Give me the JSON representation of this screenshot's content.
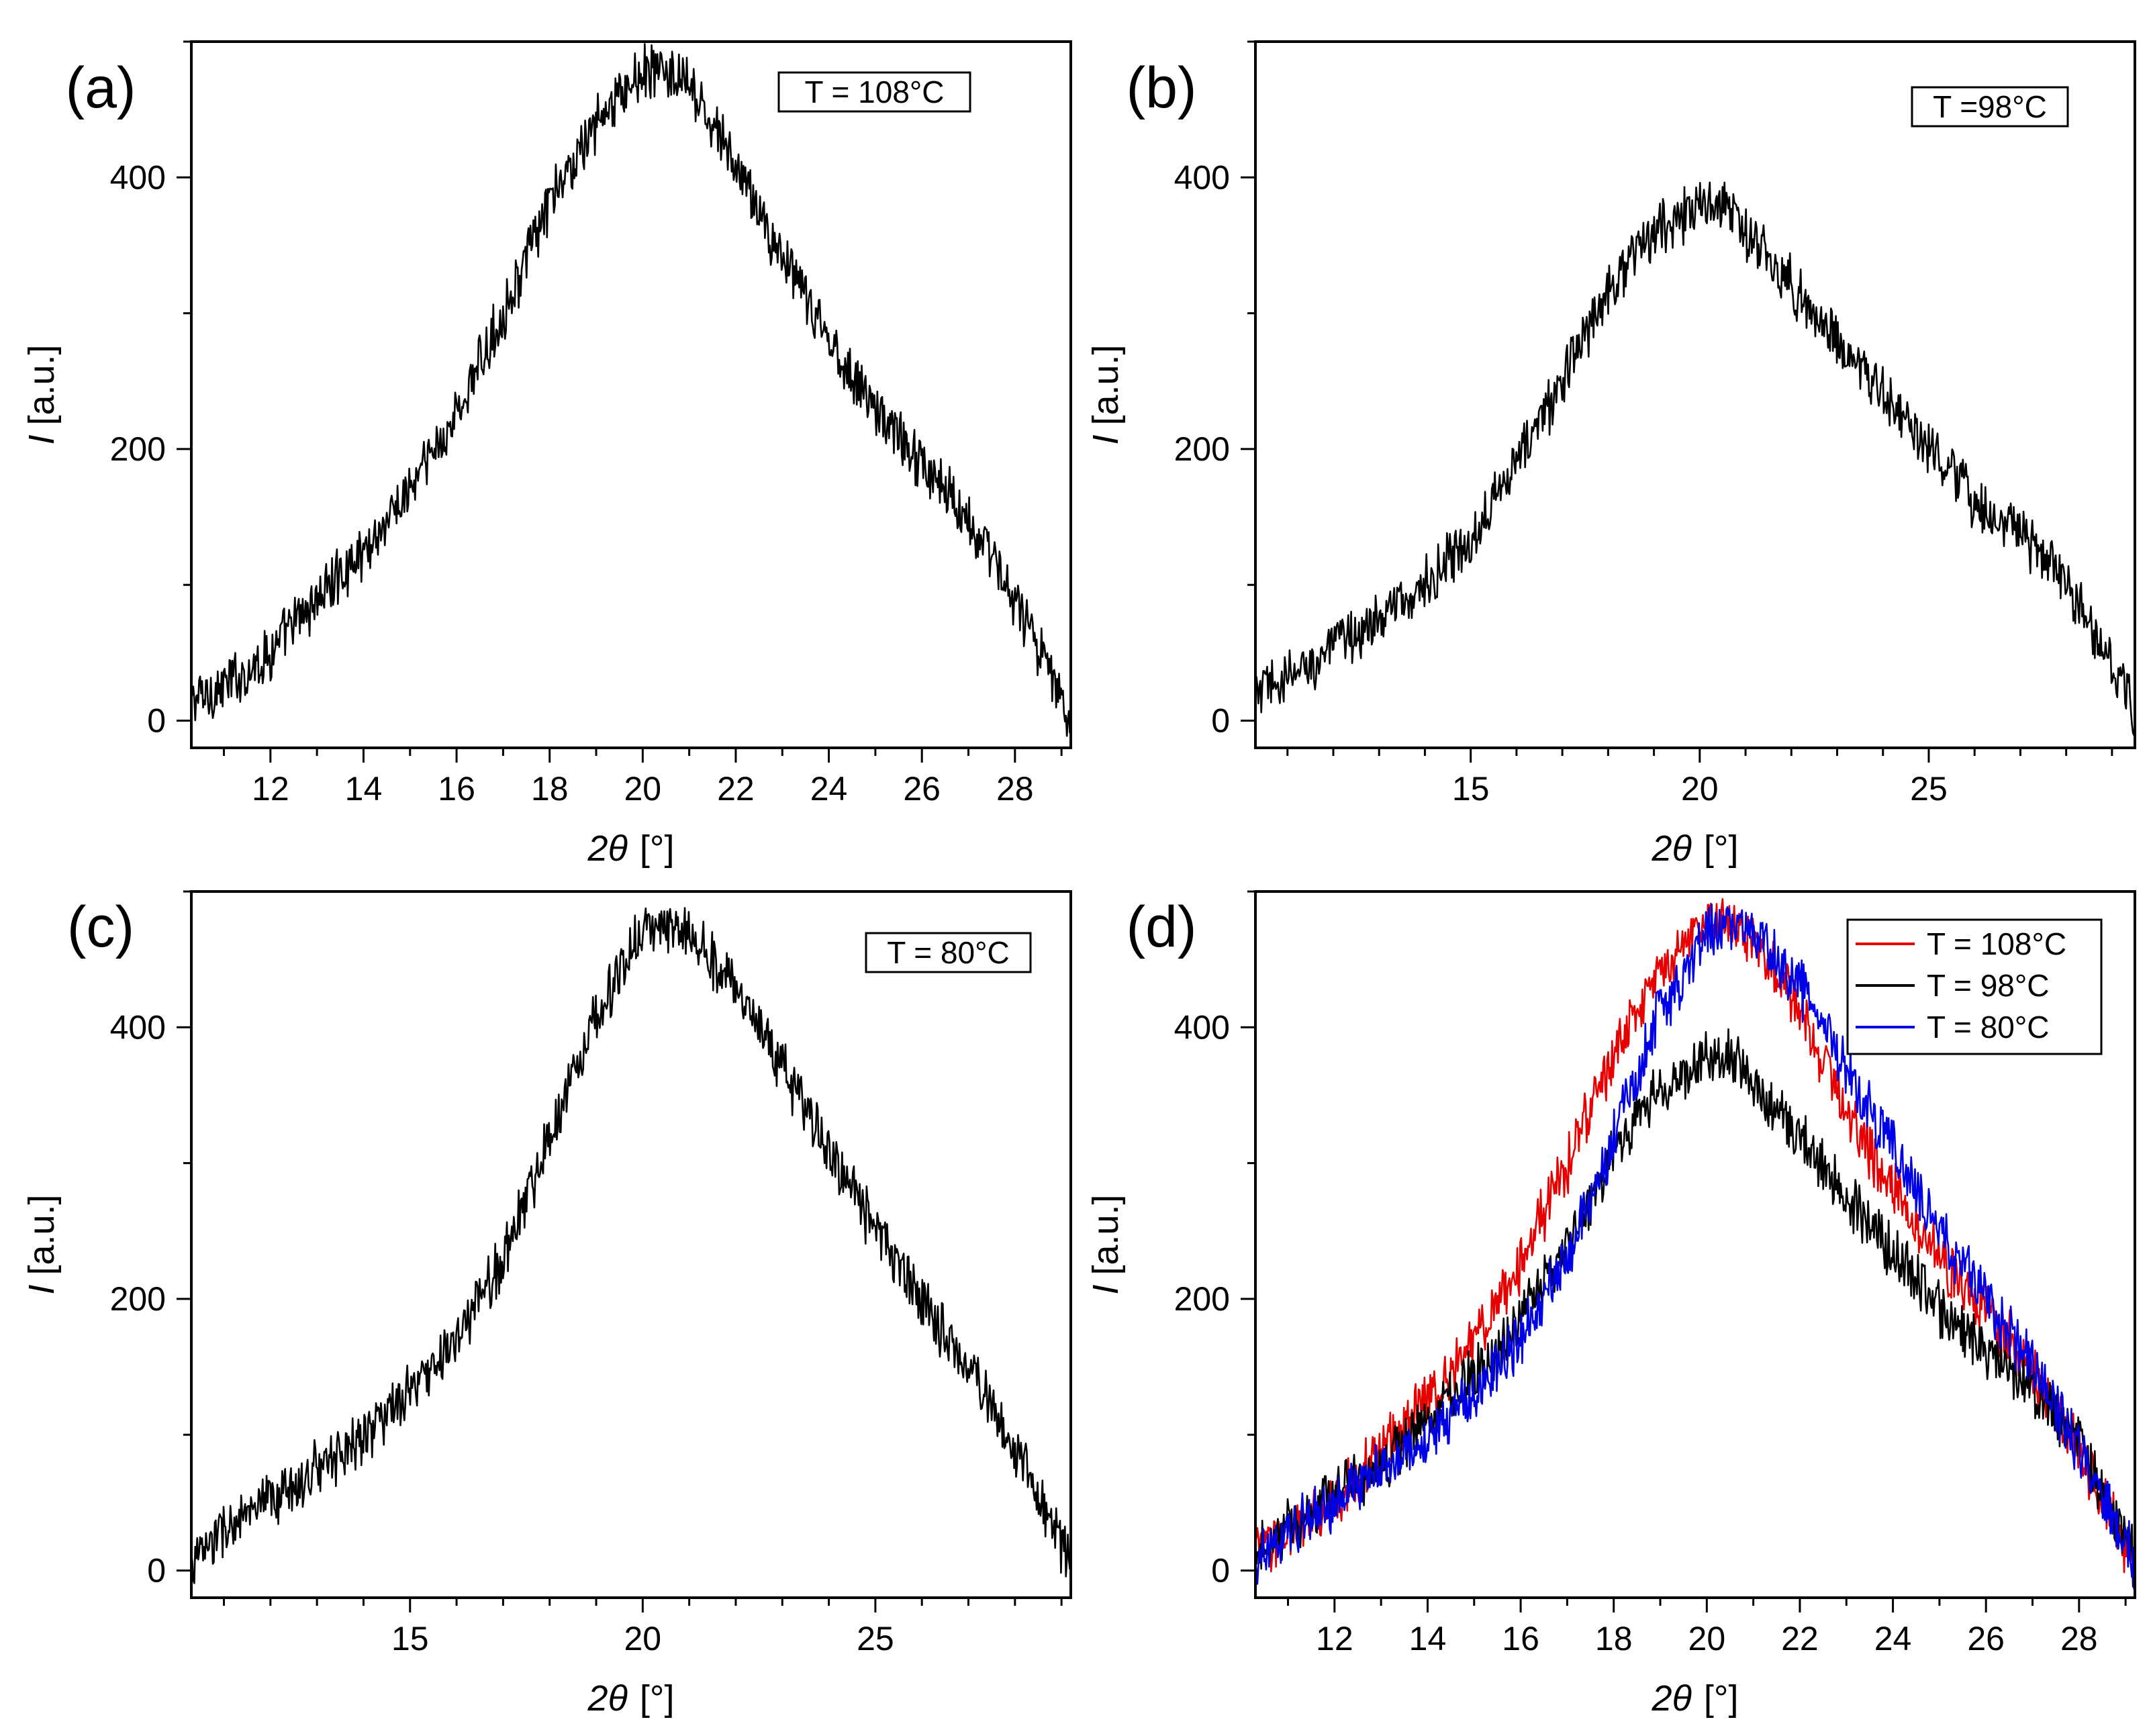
{
  "figure": {
    "xlabel_symbol": "2θ",
    "xlabel_unit": "[°]",
    "ylabel_symbol": "I",
    "ylabel_unit": "[a.u.]"
  },
  "colors": {
    "t108": "#e60000",
    "t98": "#000000",
    "t80": "#0000e6"
  },
  "chart_data": [
    {
      "panel": "(a)",
      "type": "line",
      "title": "",
      "xlabel": "2θ [°]",
      "ylabel": "I [a.u.]",
      "xlim": [
        10.3,
        29.2
      ],
      "ylim": [
        -20,
        500
      ],
      "xticks": [
        12,
        14,
        16,
        18,
        20,
        22,
        24,
        26,
        28
      ],
      "yticks": [
        0,
        200,
        400
      ],
      "legend_entries": [
        "T = 108°C"
      ],
      "series": [
        {
          "name": "T = 108°C",
          "color": "#000000",
          "x": [
            10.3,
            11,
            12,
            13,
            14,
            15,
            16,
            17,
            18,
            19,
            20,
            20.5,
            21,
            22,
            23,
            24,
            25,
            26,
            27,
            28,
            29,
            29.2
          ],
          "y": [
            15,
            25,
            50,
            90,
            125,
            170,
            225,
            300,
            380,
            440,
            478,
            478,
            465,
            410,
            340,
            280,
            230,
            190,
            150,
            90,
            15,
            5
          ]
        }
      ]
    },
    {
      "panel": "(b)",
      "type": "line",
      "title": "",
      "xlabel": "2θ [°]",
      "ylabel": "I [a.u.]",
      "xlim": [
        10.3,
        29.5
      ],
      "ylim": [
        -20,
        500
      ],
      "xticks": [
        15,
        20,
        25
      ],
      "yticks": [
        0,
        200,
        400
      ],
      "legend_entries": [
        "T =98°C"
      ],
      "series": [
        {
          "name": "T =98°C",
          "color": "#000000",
          "x": [
            10.3,
            11,
            12,
            13,
            14,
            15,
            15.5,
            16,
            17,
            18,
            19,
            20,
            20.5,
            21,
            22,
            23,
            24,
            25,
            26,
            27,
            28,
            29,
            29.5
          ],
          "y": [
            20,
            30,
            55,
            75,
            100,
            130,
            170,
            190,
            250,
            320,
            360,
            380,
            380,
            360,
            320,
            280,
            240,
            200,
            160,
            140,
            100,
            40,
            5
          ]
        }
      ]
    },
    {
      "panel": "(c)",
      "type": "line",
      "title": "",
      "xlabel": "2θ [°]",
      "ylabel": "I [a.u.]",
      "xlim": [
        10.3,
        29.2
      ],
      "ylim": [
        -20,
        500
      ],
      "xticks": [
        15,
        20,
        25
      ],
      "yticks": [
        0,
        200,
        400
      ],
      "legend_entries": [
        "T = 80°C"
      ],
      "series": [
        {
          "name": "T = 80°C",
          "color": "#000000",
          "x": [
            10.3,
            11,
            12,
            13,
            14,
            15,
            16,
            17,
            18,
            19,
            20,
            20.5,
            21,
            22,
            23,
            24,
            25,
            26,
            27,
            28,
            29,
            29.2
          ],
          "y": [
            5,
            30,
            50,
            75,
            100,
            130,
            170,
            230,
            320,
            410,
            470,
            475,
            470,
            430,
            370,
            310,
            250,
            200,
            150,
            90,
            20,
            5
          ]
        }
      ]
    },
    {
      "panel": "(d)",
      "type": "line",
      "title": "",
      "xlabel": "2θ [°]",
      "ylabel": "I [a.u.]",
      "xlim": [
        10.3,
        29.2
      ],
      "ylim": [
        -20,
        500
      ],
      "xticks": [
        12,
        14,
        16,
        18,
        20,
        22,
        24,
        26,
        28
      ],
      "yticks": [
        0,
        200,
        400
      ],
      "legend_entries": [
        "T = 108°C",
        "T = 98°C",
        "T = 80°C"
      ],
      "series": [
        {
          "name": "T = 108°C",
          "color": "#e60000",
          "x": [
            10.3,
            11,
            12,
            13,
            14,
            15,
            16,
            17,
            18,
            19,
            20,
            20.5,
            21,
            22,
            23,
            24,
            25,
            26,
            27,
            28,
            29,
            29.2
          ],
          "y": [
            15,
            25,
            50,
            90,
            125,
            170,
            225,
            300,
            380,
            440,
            478,
            478,
            465,
            410,
            340,
            280,
            230,
            190,
            150,
            90,
            15,
            5
          ]
        },
        {
          "name": "T = 98°C",
          "color": "#000000",
          "x": [
            10.3,
            11,
            12,
            13,
            14,
            15,
            16,
            17,
            18,
            19,
            20,
            20.5,
            21,
            22,
            23,
            24,
            25,
            26,
            27,
            28,
            29,
            29.2
          ],
          "y": [
            20,
            30,
            55,
            75,
            110,
            145,
            185,
            240,
            310,
            355,
            378,
            378,
            360,
            320,
            275,
            235,
            195,
            160,
            135,
            95,
            25,
            5
          ]
        },
        {
          "name": "T = 80°C",
          "color": "#0000e6",
          "x": [
            10.3,
            11,
            12,
            13,
            14,
            15,
            16,
            17,
            18,
            19,
            20,
            20.5,
            21,
            22,
            23,
            24,
            25,
            26,
            27,
            28,
            29,
            29.2
          ],
          "y": [
            5,
            30,
            50,
            75,
            100,
            130,
            170,
            230,
            320,
            410,
            470,
            475,
            470,
            430,
            370,
            310,
            250,
            200,
            150,
            90,
            20,
            5
          ]
        }
      ]
    }
  ]
}
